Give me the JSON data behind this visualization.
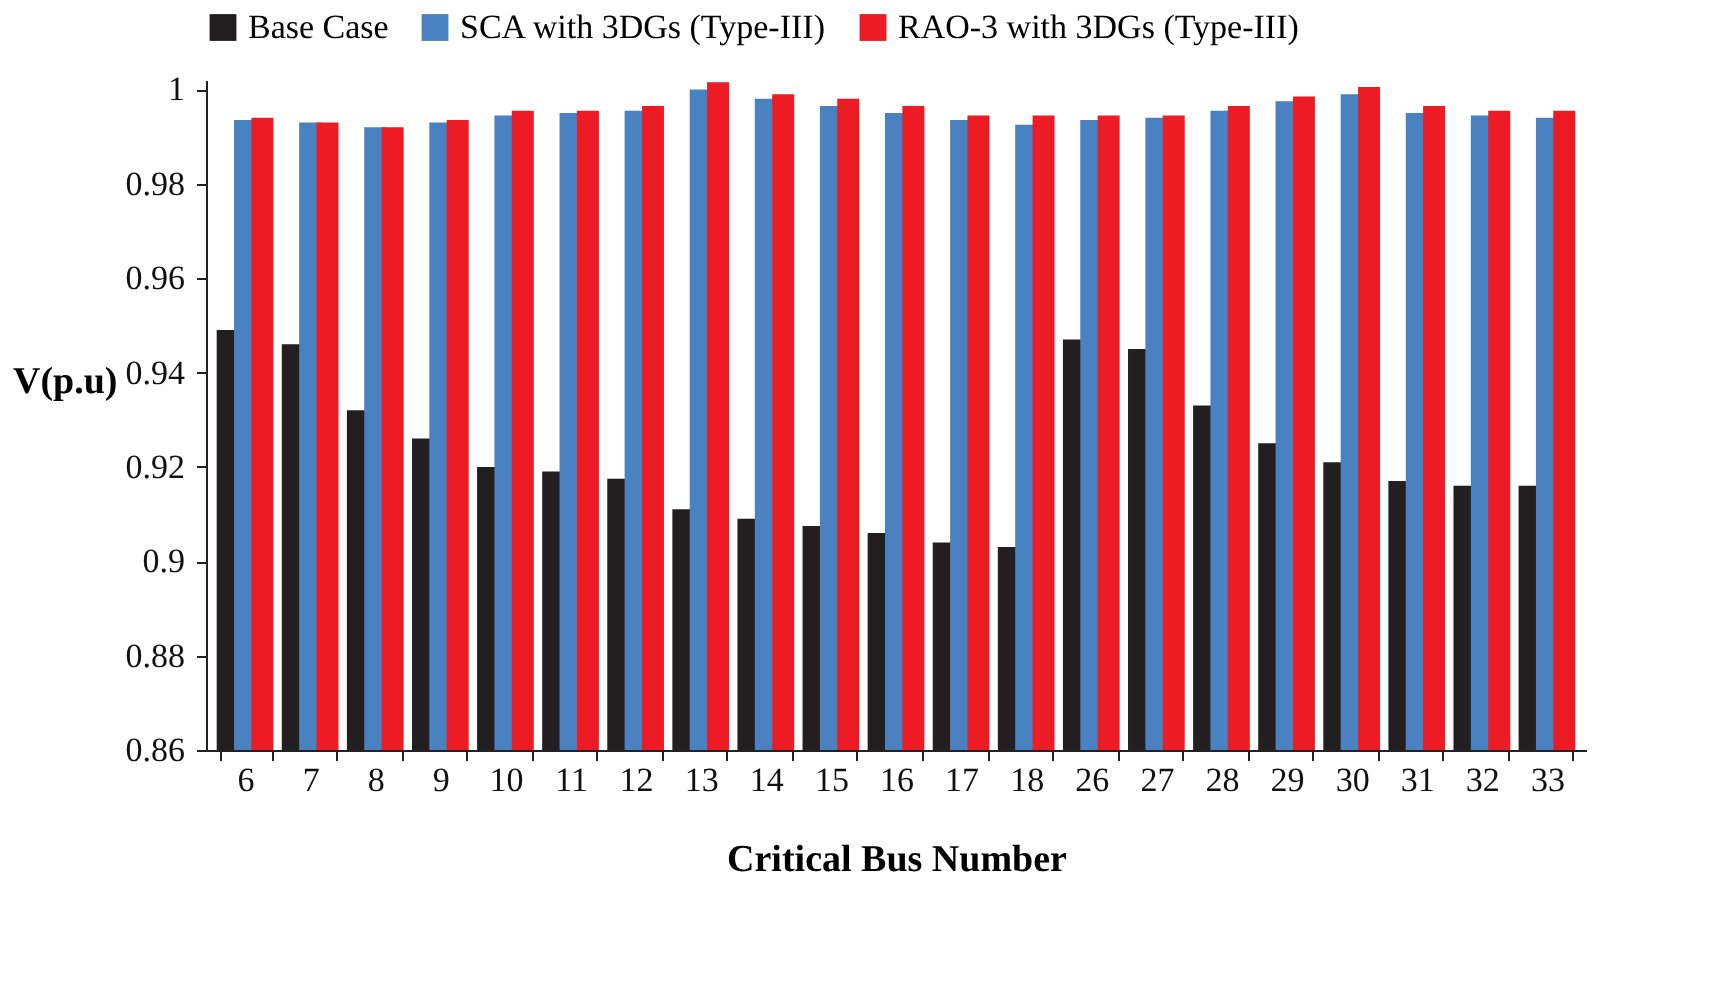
{
  "chart_data": {
    "type": "bar",
    "xlabel": "Critical Bus Number",
    "ylabel": "V(p.u)",
    "categories": [
      "6",
      "7",
      "8",
      "9",
      "10",
      "11",
      "12",
      "13",
      "14",
      "15",
      "16",
      "17",
      "18",
      "26",
      "27",
      "28",
      "29",
      "30",
      "31",
      "32",
      "33"
    ],
    "series": [
      {
        "name": "Base Case",
        "color": "#231f20",
        "values": [
          0.949,
          0.946,
          0.932,
          0.926,
          0.92,
          0.919,
          0.9175,
          0.911,
          0.909,
          0.9075,
          0.906,
          0.904,
          0.903,
          0.947,
          0.945,
          0.933,
          0.925,
          0.921,
          0.917,
          0.916,
          0.916
        ]
      },
      {
        "name": "SCA with 3DGs (Type-III)",
        "color": "#4a81c0",
        "values": [
          0.9935,
          0.993,
          0.992,
          0.993,
          0.9945,
          0.995,
          0.9955,
          1.0,
          0.998,
          0.9965,
          0.995,
          0.9935,
          0.9925,
          0.9935,
          0.994,
          0.9955,
          0.9975,
          0.999,
          0.995,
          0.9945,
          0.994
        ]
      },
      {
        "name": "RAO-3 with 3DGs (Type-III)",
        "color": "#ed1c24",
        "values": [
          0.994,
          0.993,
          0.992,
          0.9935,
          0.9955,
          0.9955,
          0.9965,
          1.0015,
          0.999,
          0.998,
          0.9965,
          0.9945,
          0.9945,
          0.9945,
          0.9945,
          0.9965,
          0.9985,
          1.0005,
          0.9965,
          0.9955,
          0.9955
        ]
      }
    ],
    "ylim": [
      0.86,
      1.002
    ],
    "yticks": [
      0.86,
      0.88,
      0.9,
      0.92,
      0.94,
      0.96,
      0.98,
      1
    ],
    "grid": false,
    "legend": "top"
  }
}
